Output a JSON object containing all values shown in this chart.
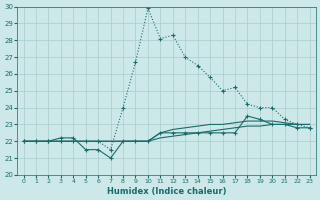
{
  "xlabel": "Humidex (Indice chaleur)",
  "background_color": "#cce8e8",
  "grid_color": "#aacccc",
  "line_color": "#1a6b6b",
  "xlim": [
    -0.5,
    23.5
  ],
  "ylim": [
    20,
    30
  ],
  "xticks": [
    0,
    1,
    2,
    3,
    4,
    5,
    6,
    7,
    8,
    9,
    10,
    11,
    12,
    13,
    14,
    15,
    16,
    17,
    18,
    19,
    20,
    21,
    22,
    23
  ],
  "yticks": [
    20,
    21,
    22,
    23,
    24,
    25,
    26,
    27,
    28,
    29,
    30
  ],
  "dot_line_x": [
    0,
    1,
    2,
    3,
    4,
    5,
    6,
    7,
    8,
    9,
    10,
    11,
    12,
    13,
    14,
    15,
    16,
    17,
    18,
    19,
    20,
    21,
    22,
    23
  ],
  "dot_line_y": [
    22,
    22,
    22,
    22,
    22,
    22,
    22,
    21.5,
    24,
    26.7,
    29.9,
    28.1,
    28.3,
    27.0,
    26.5,
    25.8,
    25.0,
    25.2,
    24.2,
    24.0,
    24.0,
    23.3,
    23.0,
    22.8
  ],
  "solid_line1_x": [
    0,
    1,
    2,
    3,
    4,
    5,
    6,
    7,
    8,
    9,
    10,
    11,
    12,
    13,
    14,
    15,
    16,
    17,
    18,
    19,
    20,
    21,
    22,
    23
  ],
  "solid_line1_y": [
    22,
    22,
    22,
    22.2,
    22.2,
    21.5,
    21.5,
    21.0,
    22.0,
    22.0,
    22.0,
    22.5,
    22.5,
    22.5,
    22.5,
    22.5,
    22.5,
    22.5,
    23.5,
    23.3,
    23.0,
    23.0,
    22.8,
    22.8
  ],
  "solid_line2_x": [
    0,
    1,
    2,
    3,
    4,
    5,
    6,
    7,
    8,
    9,
    10,
    11,
    12,
    13,
    14,
    15,
    16,
    17,
    18,
    19,
    20,
    21,
    22,
    23
  ],
  "solid_line2_y": [
    22,
    22,
    22,
    22,
    22,
    22,
    22,
    22,
    22,
    22,
    22,
    22.2,
    22.3,
    22.4,
    22.5,
    22.6,
    22.7,
    22.8,
    22.9,
    22.9,
    23.0,
    23.0,
    23.0,
    23.0
  ],
  "solid_line3_x": [
    0,
    1,
    2,
    3,
    4,
    5,
    6,
    7,
    8,
    9,
    10,
    11,
    12,
    13,
    14,
    15,
    16,
    17,
    18,
    19,
    20,
    21,
    22,
    23
  ],
  "solid_line3_y": [
    22,
    22,
    22,
    22,
    22,
    22,
    22,
    22,
    22,
    22,
    22,
    22.5,
    22.7,
    22.8,
    22.9,
    23.0,
    23.0,
    23.1,
    23.2,
    23.2,
    23.2,
    23.1,
    23.0,
    23.0
  ]
}
